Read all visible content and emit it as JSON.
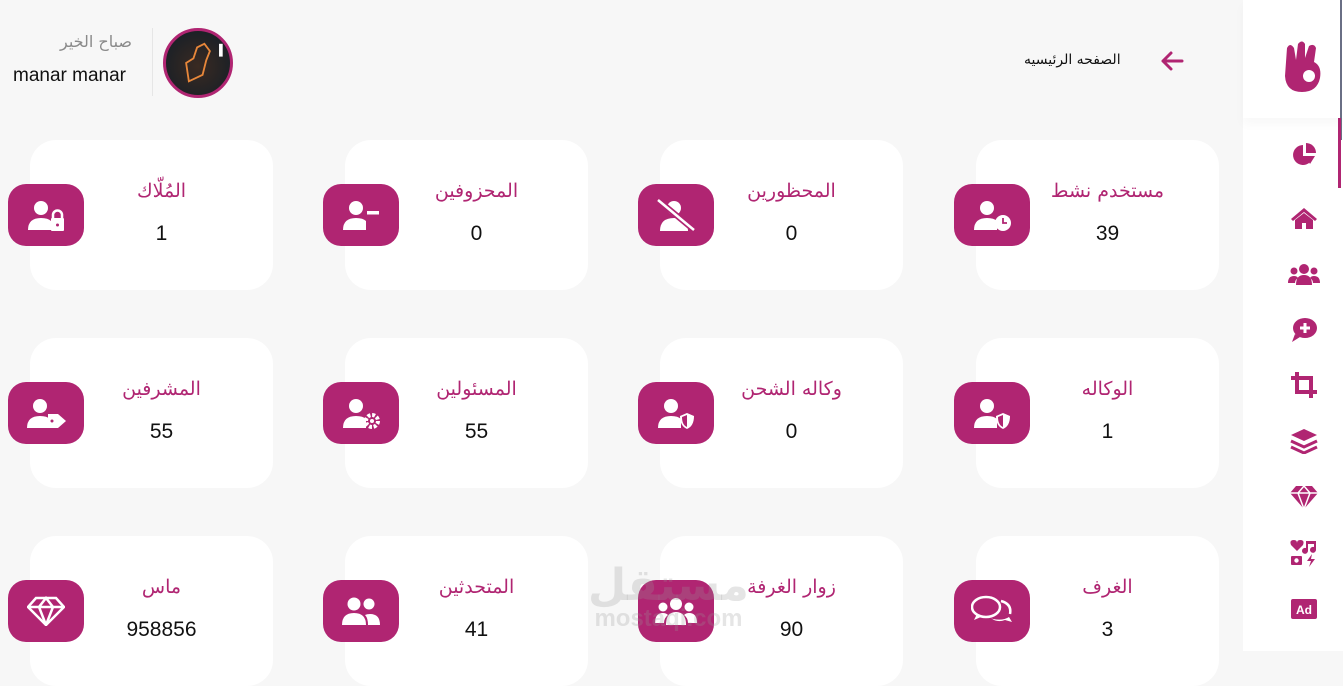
{
  "header": {
    "greeting": "صباح الخير",
    "user_name": "manar manar",
    "breadcrumb": "الصفحه الرئيسيه"
  },
  "colors": {
    "accent": "#b02572",
    "background": "#f7f7f7",
    "card": "#ffffff"
  },
  "sidebar": {
    "logo": "ok-hand-logo",
    "items": [
      {
        "icon": "chart-pie-icon",
        "active": true
      },
      {
        "icon": "home-icon"
      },
      {
        "icon": "users-icon"
      },
      {
        "icon": "comment-plus-icon"
      },
      {
        "icon": "crop-icon"
      },
      {
        "icon": "layers-icon"
      },
      {
        "icon": "gem-icon"
      },
      {
        "icon": "icons-icon"
      },
      {
        "icon": "ad-icon",
        "text": "Ad"
      }
    ]
  },
  "cards": [
    {
      "label": "المُلّاك",
      "value": "1",
      "icon": "user-lock-icon"
    },
    {
      "label": "المحزوفين",
      "value": "0",
      "icon": "user-minus-icon"
    },
    {
      "label": "المحظورين",
      "value": "0",
      "icon": "user-slash-icon"
    },
    {
      "label": "مستخدم نشط",
      "value": "39",
      "icon": "user-clock-icon"
    },
    {
      "label": "المشرفين",
      "value": "55",
      "icon": "user-tag-icon"
    },
    {
      "label": "المسئولين",
      "value": "55",
      "icon": "user-cog-icon"
    },
    {
      "label": "وكاله الشحن",
      "value": "0",
      "icon": "user-shield-icon"
    },
    {
      "label": "الوكاله",
      "value": "1",
      "icon": "user-shield-icon"
    },
    {
      "label": "ماس",
      "value": "958856",
      "icon": "gem-icon"
    },
    {
      "label": "المتحدثين",
      "value": "41",
      "icon": "user-friends-icon"
    },
    {
      "label": "زوار الغرفة",
      "value": "90",
      "icon": "users-icon"
    },
    {
      "label": "الغرف",
      "value": "3",
      "icon": "comments-icon"
    }
  ],
  "watermark": {
    "arabic": "مستقل",
    "latin": "mostaqi.com"
  }
}
